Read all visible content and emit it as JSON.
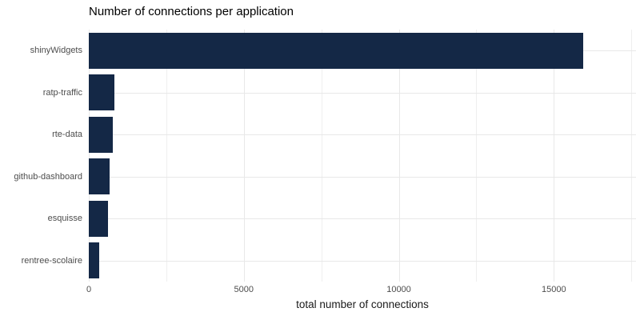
{
  "chart_data": {
    "type": "bar",
    "orientation": "horizontal",
    "title": "Number of connections per application",
    "xlabel": "total number of connections",
    "categories": [
      "shinyWidgets",
      "ratp-traffic",
      "rte-data",
      "github-dashboard",
      "esquisse",
      "rentree-scolaire"
    ],
    "values": [
      15950,
      815,
      775,
      660,
      620,
      335
    ],
    "x_major_ticks": [
      0,
      5000,
      10000,
      15000
    ],
    "x_major_tick_labels": [
      "0",
      "5000",
      "10000",
      "15000"
    ],
    "x_minor_ticks": [
      2500,
      7500,
      12500,
      17500
    ],
    "xlim": [
      0,
      17650
    ],
    "grid": true,
    "legend": "none",
    "colors": {
      "bar": "#142846",
      "grid_major": "#e8e8e8",
      "grid_minor": "#efefef",
      "tick_label": "#4d4d4d",
      "axis_title": "#1a1a1a",
      "title": "#000000",
      "background": "#ffffff"
    }
  }
}
